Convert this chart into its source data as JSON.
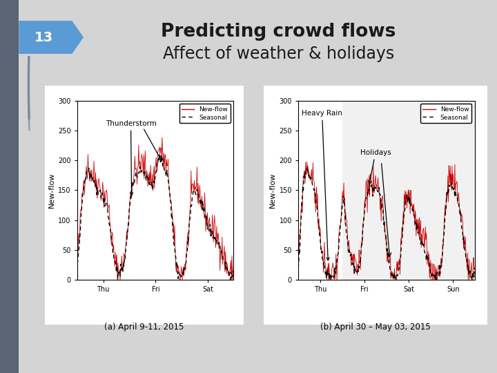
{
  "title_line1": "Predicting crowd flows",
  "title_line2": "Affect of weather & holidays",
  "slide_number": "13",
  "bg_color": "#d4d4d4",
  "slide_num_bg": "#5b9bd5",
  "title_color": "#1a1a1a",
  "plot_a_xlabel": "(a) April 9-11, 2015",
  "plot_b_xlabel": "(b) April 30 – May 03, 2015",
  "plot_a_xticks": [
    "Thu",
    "Fri",
    "Sat"
  ],
  "plot_b_xticks": [
    "Thu",
    "Fri",
    "Sat",
    "Sun"
  ],
  "plot_a_annotation": "Thunderstorm",
  "plot_b_annotation1": "Heavy Rain",
  "plot_b_annotation2": "Holidays",
  "ylabel": "New-flow",
  "ylim": [
    0,
    300
  ],
  "yticks": [
    0,
    50,
    100,
    150,
    200,
    250,
    300
  ],
  "legend_entries": [
    "New-flow",
    "Seasonal"
  ],
  "seed_a": 42,
  "seed_b": 99,
  "n_points_a": 288,
  "n_points_b": 384
}
